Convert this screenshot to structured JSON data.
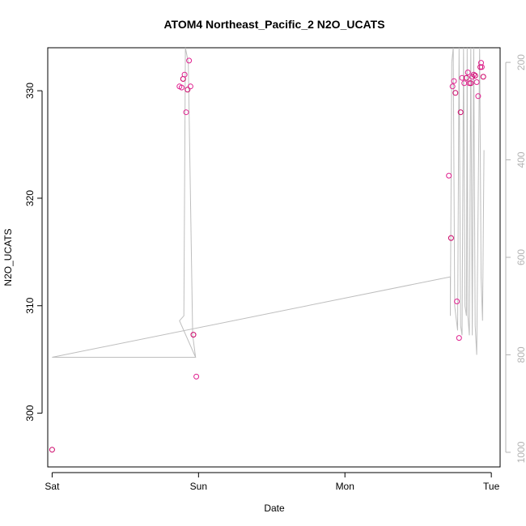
{
  "chart_data": {
    "type": "scatter",
    "title": "ATOM4 Northeast_Pacific_2 N2O_UCATS",
    "xlabel": "Date",
    "ylabel": "N2O_UCATS",
    "x_ticks": [
      "Sat",
      "Sun",
      "Mon",
      "Tue"
    ],
    "y_ticks": [
      300,
      310,
      320,
      330
    ],
    "y2_ticks": [
      200,
      400,
      600,
      800,
      1000
    ],
    "x_range_days": [
      -0.03,
      3.06
    ],
    "ylim": [
      295,
      334
    ],
    "y2lim": [
      1030,
      170
    ],
    "colors": {
      "points": "#e0208f",
      "points_alt": "#cc0066",
      "profile": "#bebebe",
      "right_axis": "#b3b3b3"
    },
    "series": [
      {
        "marker": "circle",
        "points": [
          [
            0.0,
            296.6
          ],
          [
            0.87,
            330.4
          ],
          [
            0.885,
            330.3
          ],
          [
            0.895,
            331.1
          ],
          [
            0.905,
            331.5
          ],
          [
            0.915,
            328.0
          ],
          [
            0.925,
            330.1
          ],
          [
            0.935,
            332.8
          ],
          [
            0.945,
            330.4
          ],
          [
            0.965,
            307.3
          ],
          [
            0.985,
            303.4
          ],
          [
            2.71,
            322.1
          ],
          [
            2.725,
            316.3
          ],
          [
            2.735,
            330.4
          ],
          [
            2.745,
            330.9
          ],
          [
            2.755,
            329.8
          ],
          [
            2.765,
            310.4
          ],
          [
            2.78,
            307.0
          ],
          [
            2.79,
            328.0
          ],
          [
            2.8,
            331.2
          ],
          [
            2.815,
            330.7
          ],
          [
            2.83,
            331.2
          ],
          [
            2.84,
            331.7
          ],
          [
            2.85,
            330.7
          ],
          [
            2.86,
            330.7
          ],
          [
            2.87,
            331.3
          ],
          [
            2.88,
            331.5
          ],
          [
            2.89,
            331.4
          ],
          [
            2.9,
            330.8
          ],
          [
            2.91,
            329.5
          ],
          [
            2.925,
            332.2
          ],
          [
            2.93,
            332.6
          ],
          [
            2.935,
            332.2
          ],
          [
            2.945,
            331.3
          ]
        ]
      }
    ],
    "profile": [
      [
        0.0,
        805
      ],
      [
        0.98,
        805
      ],
      [
        0.98,
        805
      ],
      [
        0.96,
        760
      ],
      [
        0.93,
        200
      ],
      [
        0.91,
        160
      ],
      [
        0.9,
        720
      ],
      [
        0.87,
        730
      ],
      [
        0.87,
        730
      ],
      [
        0.98,
        805
      ],
      [
        0.0,
        805
      ],
      [
        2.72,
        640
      ],
      [
        2.72,
        720
      ],
      [
        2.73,
        200
      ],
      [
        2.74,
        160
      ],
      [
        2.75,
        700
      ],
      [
        2.77,
        750
      ],
      [
        2.78,
        160
      ],
      [
        2.79,
        740
      ],
      [
        2.8,
        760
      ],
      [
        2.81,
        160
      ],
      [
        2.82,
        700
      ],
      [
        2.83,
        720
      ],
      [
        2.835,
        170
      ],
      [
        2.84,
        720
      ],
      [
        2.85,
        760
      ],
      [
        2.86,
        165
      ],
      [
        2.87,
        760
      ],
      [
        2.88,
        170
      ],
      [
        2.89,
        740
      ],
      [
        2.9,
        800
      ],
      [
        2.92,
        170
      ],
      [
        2.93,
        640
      ],
      [
        2.94,
        730
      ],
      [
        2.95,
        380
      ]
    ]
  }
}
